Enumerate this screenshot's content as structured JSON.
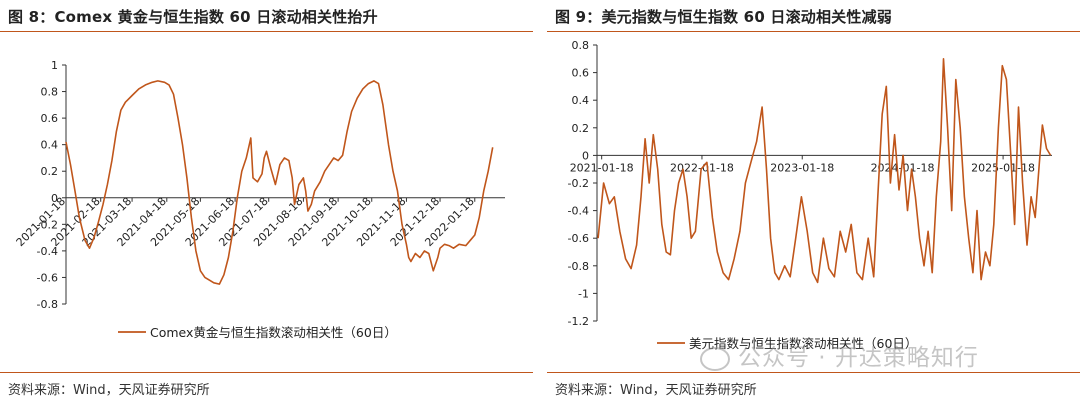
{
  "left": {
    "title": "图 8：Comex 黄金与恒生指数 60 日滚动相关性抬升",
    "source": "资料来源：Wind，天风证券研究所"
  },
  "right": {
    "title": "图 9：美元指数与恒生指数 60 日滚动相关性减弱",
    "source": "资料来源：Wind，天风证券研究所"
  },
  "watermark": "公众号 · 开达策略知行",
  "colors": {
    "series": "#c0561b",
    "axis": "#333333",
    "rule": "#c0561b"
  },
  "chart_data": [
    {
      "type": "line",
      "legend_position": "bottom",
      "grid": false,
      "ylim": [
        -0.8,
        1
      ],
      "yticks": [
        -0.8,
        -0.6,
        -0.4,
        -0.2,
        0,
        0.2,
        0.4,
        0.6,
        0.8,
        1
      ],
      "ytick_labels": [
        "-0.8",
        "-0.6",
        "-0.4",
        "-0.2",
        "0",
        "0.2",
        "0.4",
        "0.6",
        "0.8",
        "1"
      ],
      "xlim": [
        "2021-01-18",
        "2022-02-14"
      ],
      "xticks": [
        "2021-01-18",
        "2021-02-18",
        "2021-03-18",
        "2021-04-18",
        "2021-05-18",
        "2021-06-18",
        "2021-07-18",
        "2021-08-18",
        "2021-09-18",
        "2021-10-18",
        "2021-11-18",
        "2021-12-18",
        "2022-01-18"
      ],
      "xtick_labels": [
        "2021-01-18",
        "2021-02-18",
        "2021-03-18",
        "2021-04-18",
        "2021-05-18",
        "2021-06-18",
        "2021-07-18",
        "2021-08-18",
        "2021-09-18",
        "2021-10-18",
        "2021-11-18",
        "2021-12-18",
        "2022-01-18"
      ],
      "series": [
        {
          "name": "Comex黄金与恒生指数滚动相关性（60日）",
          "points": [
            [
              "2021-01-18",
              0.42
            ],
            [
              "2021-01-22",
              0.25
            ],
            [
              "2021-01-26",
              0.05
            ],
            [
              "2021-01-30",
              -0.15
            ],
            [
              "2021-02-04",
              -0.32
            ],
            [
              "2021-02-08",
              -0.38
            ],
            [
              "2021-02-12",
              -0.3
            ],
            [
              "2021-02-16",
              -0.18
            ],
            [
              "2021-02-20",
              -0.05
            ],
            [
              "2021-02-24",
              0.1
            ],
            [
              "2021-02-28",
              0.28
            ],
            [
              "2021-03-04",
              0.5
            ],
            [
              "2021-03-08",
              0.66
            ],
            [
              "2021-03-12",
              0.72
            ],
            [
              "2021-03-18",
              0.77
            ],
            [
              "2021-03-24",
              0.82
            ],
            [
              "2021-03-30",
              0.85
            ],
            [
              "2021-04-05",
              0.87
            ],
            [
              "2021-04-10",
              0.88
            ],
            [
              "2021-04-16",
              0.87
            ],
            [
              "2021-04-20",
              0.85
            ],
            [
              "2021-04-24",
              0.78
            ],
            [
              "2021-04-28",
              0.6
            ],
            [
              "2021-05-02",
              0.4
            ],
            [
              "2021-05-06",
              0.15
            ],
            [
              "2021-05-10",
              -0.15
            ],
            [
              "2021-05-14",
              -0.4
            ],
            [
              "2021-05-18",
              -0.55
            ],
            [
              "2021-05-22",
              -0.6
            ],
            [
              "2021-05-26",
              -0.62
            ],
            [
              "2021-05-30",
              -0.64
            ],
            [
              "2021-06-04",
              -0.65
            ],
            [
              "2021-06-08",
              -0.58
            ],
            [
              "2021-06-12",
              -0.45
            ],
            [
              "2021-06-16",
              -0.25
            ],
            [
              "2021-06-20",
              0.0
            ],
            [
              "2021-06-24",
              0.2
            ],
            [
              "2021-06-28",
              0.3
            ],
            [
              "2021-07-02",
              0.45
            ],
            [
              "2021-07-04",
              0.15
            ],
            [
              "2021-07-08",
              0.12
            ],
            [
              "2021-07-12",
              0.18
            ],
            [
              "2021-07-14",
              0.3
            ],
            [
              "2021-07-16",
              0.35
            ],
            [
              "2021-07-20",
              0.22
            ],
            [
              "2021-07-24",
              0.1
            ],
            [
              "2021-07-28",
              0.25
            ],
            [
              "2021-08-01",
              0.3
            ],
            [
              "2021-08-05",
              0.28
            ],
            [
              "2021-08-08",
              0.15
            ],
            [
              "2021-08-10",
              -0.05
            ],
            [
              "2021-08-14",
              0.1
            ],
            [
              "2021-08-18",
              0.15
            ],
            [
              "2021-08-20",
              0.05
            ],
            [
              "2021-08-22",
              -0.1
            ],
            [
              "2021-08-25",
              -0.05
            ],
            [
              "2021-08-28",
              0.05
            ],
            [
              "2021-09-02",
              0.12
            ],
            [
              "2021-09-06",
              0.2
            ],
            [
              "2021-09-10",
              0.25
            ],
            [
              "2021-09-14",
              0.3
            ],
            [
              "2021-09-18",
              0.28
            ],
            [
              "2021-09-22",
              0.32
            ],
            [
              "2021-09-26",
              0.5
            ],
            [
              "2021-09-30",
              0.65
            ],
            [
              "2021-10-05",
              0.75
            ],
            [
              "2021-10-10",
              0.82
            ],
            [
              "2021-10-15",
              0.86
            ],
            [
              "2021-10-20",
              0.88
            ],
            [
              "2021-10-24",
              0.86
            ],
            [
              "2021-10-28",
              0.7
            ],
            [
              "2021-11-02",
              0.4
            ],
            [
              "2021-11-06",
              0.2
            ],
            [
              "2021-11-10",
              0.05
            ],
            [
              "2021-11-14",
              -0.2
            ],
            [
              "2021-11-18",
              -0.35
            ],
            [
              "2021-11-20",
              -0.45
            ],
            [
              "2021-11-22",
              -0.48
            ],
            [
              "2021-11-26",
              -0.42
            ],
            [
              "2021-11-30",
              -0.45
            ],
            [
              "2021-12-04",
              -0.4
            ],
            [
              "2021-12-08",
              -0.42
            ],
            [
              "2021-12-12",
              -0.55
            ],
            [
              "2021-12-16",
              -0.45
            ],
            [
              "2021-12-18",
              -0.38
            ],
            [
              "2021-12-22",
              -0.35
            ],
            [
              "2021-12-26",
              -0.36
            ],
            [
              "2021-12-30",
              -0.38
            ],
            [
              "2022-01-04",
              -0.35
            ],
            [
              "2022-01-10",
              -0.36
            ],
            [
              "2022-01-14",
              -0.32
            ],
            [
              "2022-01-18",
              -0.28
            ],
            [
              "2022-01-22",
              -0.15
            ],
            [
              "2022-01-26",
              0.05
            ],
            [
              "2022-01-30",
              0.2
            ],
            [
              "2022-02-03",
              0.38
            ]
          ]
        }
      ]
    },
    {
      "type": "line",
      "legend_position": "bottom",
      "grid": false,
      "ylim": [
        -1.2,
        0.8
      ],
      "yticks": [
        -1.2,
        -1,
        -0.8,
        -0.6,
        -0.4,
        -0.2,
        0,
        0.2,
        0.4,
        0.6,
        0.8
      ],
      "ytick_labels": [
        "-1.2",
        "-1",
        "-0.8",
        "-0.6",
        "-0.4",
        "-0.2",
        "0",
        "0.2",
        "0.4",
        "0.6",
        "0.8"
      ],
      "xlim": [
        "2021-01-01",
        "2025-07-15"
      ],
      "xticks": [
        "2021-01-18",
        "2022-01-18",
        "2023-01-18",
        "2024-01-18",
        "2025-01-18"
      ],
      "xtick_labels": [
        "2021-01-18",
        "2022-01-18",
        "2023-01-18",
        "2024-01-18",
        "2025-01-18"
      ],
      "series": [
        {
          "name": "美元指数与恒生指数滚动相关性（60日）",
          "points": [
            [
              "2021-01-05",
              -0.6
            ],
            [
              "2021-01-25",
              -0.2
            ],
            [
              "2021-02-15",
              -0.35
            ],
            [
              "2021-03-05",
              -0.3
            ],
            [
              "2021-03-25",
              -0.55
            ],
            [
              "2021-04-15",
              -0.75
            ],
            [
              "2021-05-05",
              -0.82
            ],
            [
              "2021-05-25",
              -0.65
            ],
            [
              "2021-06-10",
              -0.3
            ],
            [
              "2021-06-25",
              0.12
            ],
            [
              "2021-07-10",
              -0.2
            ],
            [
              "2021-07-25",
              0.15
            ],
            [
              "2021-08-10",
              -0.1
            ],
            [
              "2021-08-25",
              -0.5
            ],
            [
              "2021-09-10",
              -0.7
            ],
            [
              "2021-09-25",
              -0.72
            ],
            [
              "2021-10-10",
              -0.4
            ],
            [
              "2021-10-25",
              -0.2
            ],
            [
              "2021-11-10",
              -0.1
            ],
            [
              "2021-11-25",
              -0.3
            ],
            [
              "2021-12-10",
              -0.6
            ],
            [
              "2021-12-25",
              -0.55
            ],
            [
              "2022-01-15",
              -0.1
            ],
            [
              "2022-02-05",
              -0.05
            ],
            [
              "2022-02-25",
              -0.45
            ],
            [
              "2022-03-15",
              -0.7
            ],
            [
              "2022-04-05",
              -0.85
            ],
            [
              "2022-04-25",
              -0.9
            ],
            [
              "2022-05-15",
              -0.75
            ],
            [
              "2022-06-05",
              -0.55
            ],
            [
              "2022-06-25",
              -0.2
            ],
            [
              "2022-07-15",
              -0.05
            ],
            [
              "2022-08-05",
              0.1
            ],
            [
              "2022-08-25",
              0.35
            ],
            [
              "2022-09-10",
              -0.1
            ],
            [
              "2022-09-25",
              -0.6
            ],
            [
              "2022-10-10",
              -0.85
            ],
            [
              "2022-10-25",
              -0.9
            ],
            [
              "2022-11-15",
              -0.8
            ],
            [
              "2022-12-05",
              -0.88
            ],
            [
              "2022-12-25",
              -0.6
            ],
            [
              "2023-01-15",
              -0.3
            ],
            [
              "2023-02-05",
              -0.55
            ],
            [
              "2023-02-25",
              -0.85
            ],
            [
              "2023-03-15",
              -0.92
            ],
            [
              "2023-04-05",
              -0.6
            ],
            [
              "2023-04-25",
              -0.82
            ],
            [
              "2023-05-15",
              -0.88
            ],
            [
              "2023-06-05",
              -0.55
            ],
            [
              "2023-06-25",
              -0.7
            ],
            [
              "2023-07-15",
              -0.5
            ],
            [
              "2023-08-05",
              -0.85
            ],
            [
              "2023-08-25",
              -0.9
            ],
            [
              "2023-09-15",
              -0.6
            ],
            [
              "2023-10-05",
              -0.88
            ],
            [
              "2023-10-20",
              -0.3
            ],
            [
              "2023-11-05",
              0.3
            ],
            [
              "2023-11-20",
              0.5
            ],
            [
              "2023-12-05",
              -0.2
            ],
            [
              "2023-12-20",
              0.15
            ],
            [
              "2024-01-05",
              -0.25
            ],
            [
              "2024-01-20",
              0.0
            ],
            [
              "2024-02-05",
              -0.4
            ],
            [
              "2024-02-20",
              -0.1
            ],
            [
              "2024-03-05",
              -0.3
            ],
            [
              "2024-03-20",
              -0.6
            ],
            [
              "2024-04-05",
              -0.8
            ],
            [
              "2024-04-20",
              -0.55
            ],
            [
              "2024-05-05",
              -0.85
            ],
            [
              "2024-05-20",
              -0.3
            ],
            [
              "2024-06-05",
              0.1
            ],
            [
              "2024-06-15",
              0.7
            ],
            [
              "2024-06-30",
              0.2
            ],
            [
              "2024-07-15",
              -0.4
            ],
            [
              "2024-07-30",
              0.55
            ],
            [
              "2024-08-15",
              0.2
            ],
            [
              "2024-08-30",
              -0.3
            ],
            [
              "2024-09-15",
              -0.6
            ],
            [
              "2024-09-30",
              -0.85
            ],
            [
              "2024-10-15",
              -0.4
            ],
            [
              "2024-10-30",
              -0.9
            ],
            [
              "2024-11-15",
              -0.7
            ],
            [
              "2024-12-01",
              -0.8
            ],
            [
              "2024-12-15",
              -0.5
            ],
            [
              "2025-01-01",
              0.2
            ],
            [
              "2025-01-15",
              0.65
            ],
            [
              "2025-01-30",
              0.55
            ],
            [
              "2025-02-15",
              0.0
            ],
            [
              "2025-03-01",
              -0.5
            ],
            [
              "2025-03-15",
              0.35
            ],
            [
              "2025-03-30",
              -0.2
            ],
            [
              "2025-04-15",
              -0.65
            ],
            [
              "2025-04-30",
              -0.3
            ],
            [
              "2025-05-15",
              -0.45
            ],
            [
              "2025-05-30",
              -0.05
            ],
            [
              "2025-06-10",
              0.22
            ],
            [
              "2025-06-25",
              0.05
            ],
            [
              "2025-07-10",
              0.0
            ]
          ]
        }
      ]
    }
  ]
}
